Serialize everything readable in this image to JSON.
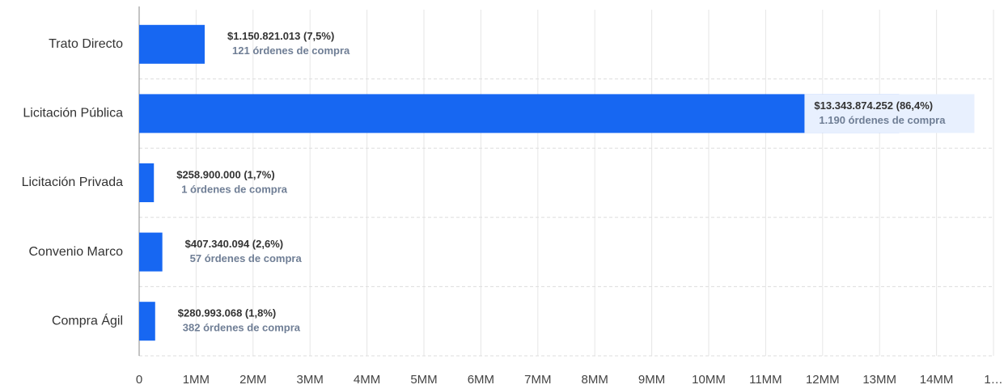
{
  "chart_data": {
    "type": "bar",
    "orientation": "horizontal",
    "categories": [
      "Trato Directo",
      "Licitación Pública",
      "Licitación Privada",
      "Convenio Marco",
      "Compra Ágil"
    ],
    "values": [
      1150821013,
      13343874252,
      258900000,
      407340094,
      280993068
    ],
    "value_labels": [
      "$1.150.821.013 (7,5%)",
      "$13.343.874.252 (86,4%)",
      "$258.900.000 (1,7%)",
      "$407.340.094 (2,6%)",
      "$280.993.068 (1,8%)"
    ],
    "order_labels": [
      "121 órdenes de compra",
      "1.190 órdenes de compra",
      "1 órdenes de compra",
      "57 órdenes de compra",
      "382 órdenes de compra"
    ],
    "color": "#1767f2",
    "xlim": [
      0,
      15000000000
    ],
    "xticks": [
      0,
      {
        "value": 1000000000,
        "label": "1MM"
      },
      {
        "value": 2000000000,
        "label": "2MM"
      },
      {
        "value": 3000000000,
        "label": "3MM"
      },
      {
        "value": 4000000000,
        "label": "4MM"
      },
      {
        "value": 5000000000,
        "label": "5MM"
      },
      {
        "value": 6000000000,
        "label": "6MM"
      },
      {
        "value": 7000000000,
        "label": "7MM"
      },
      {
        "value": 8000000000,
        "label": "8MM"
      },
      {
        "value": 9000000000,
        "label": "9MM"
      },
      {
        "value": 10000000000,
        "label": "10MM"
      },
      {
        "value": 11000000000,
        "label": "11MM"
      },
      {
        "value": 12000000000,
        "label": "12MM"
      },
      {
        "value": 13000000000,
        "label": "13MM"
      },
      {
        "value": 14000000000,
        "label": "14MM"
      },
      {
        "value": 15000000000,
        "label": "1…"
      }
    ],
    "grid": true
  }
}
